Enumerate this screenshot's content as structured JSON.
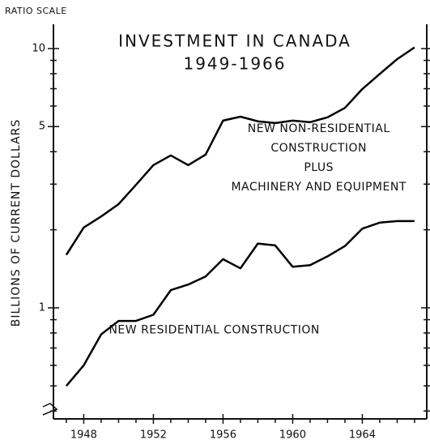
{
  "chart_data": {
    "type": "line",
    "scale_note": "RATIO SCALE",
    "title": "INVESTMENT IN CANADA",
    "subtitle": "1949-1966",
    "y_label": "BILLIONS OF CURRENT DOLLARS",
    "log_y": true,
    "x": [
      1947,
      1948,
      1949,
      1950,
      1951,
      1952,
      1953,
      1954,
      1955,
      1956,
      1957,
      1958,
      1959,
      1960,
      1961,
      1962,
      1963,
      1964,
      1965,
      1966,
      1967
    ],
    "series": [
      {
        "color": "#000000",
        "values": [
          1.6,
          2.04,
          2.25,
          2.51,
          2.98,
          3.55,
          3.87,
          3.55,
          3.9,
          5.27,
          5.46,
          5.24,
          5.16,
          5.27,
          5.2,
          5.43,
          5.9,
          6.98,
          7.98,
          9.1,
          10.1
        ]
      },
      {
        "color": "#000000",
        "values": [
          0.5,
          0.6,
          0.79,
          0.89,
          0.89,
          0.94,
          1.17,
          1.23,
          1.32,
          1.54,
          1.42,
          1.77,
          1.74,
          1.44,
          1.46,
          1.58,
          1.73,
          2.02,
          2.13,
          2.16,
          2.16
        ]
      }
    ],
    "annotations": [
      {
        "lines": [
          "NEW NON-RESIDENTIAL",
          "CONSTRUCTION",
          "PLUS",
          "MACHINERY AND EQUIPMENT"
        ],
        "x": 1961.5,
        "y": 4.9
      },
      {
        "lines": [
          "NEW RESIDENTIAL CONSTRUCTION"
        ],
        "x": 1955.5,
        "y": 0.82
      }
    ],
    "xlim": [
      1946.26,
      1967.7
    ],
    "ylim": [
      0.373,
      12.4
    ],
    "xticks": [
      1948,
      1952,
      1956,
      1960,
      1964
    ],
    "x_minor_ticks": [
      1947,
      1949,
      1950,
      1951,
      1953,
      1954,
      1955,
      1957,
      1958,
      1959,
      1961,
      1962,
      1963,
      1965,
      1966,
      1967
    ],
    "yticks": [
      1,
      5,
      10
    ],
    "y_minor_ticks": [
      0.4,
      0.5,
      0.6,
      0.7,
      0.8,
      0.9,
      2,
      3,
      4,
      6,
      7,
      8,
      9
    ]
  }
}
